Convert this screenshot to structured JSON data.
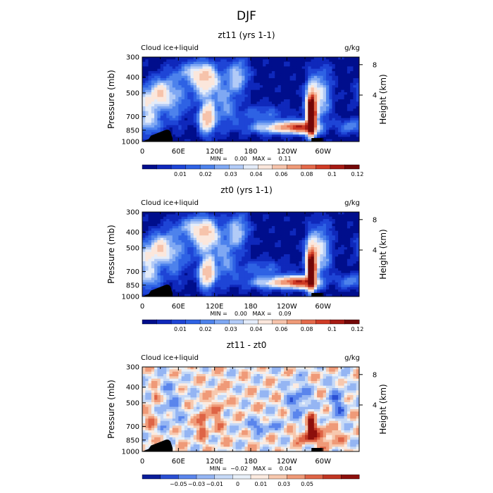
{
  "page_title": "DJF",
  "chart_data": [
    {
      "type": "heatmap",
      "title": "zt11 (yrs 1-1)",
      "variable": "Cloud ice+liquid",
      "units": "g/kg",
      "ylabel": "Pressure (mb)",
      "ylabel_right": "Height (km)",
      "xticks": [
        "0",
        "60E",
        "120E",
        "180",
        "120W",
        "60W"
      ],
      "yticks": [
        "300",
        "400",
        "500",
        "700",
        "850",
        "1000"
      ],
      "height_ticks": [
        "8",
        "4"
      ],
      "min_max": "MIN =    0.00   MAX =    0.11",
      "colorbar": {
        "labels": [
          "0.01",
          "0.02",
          "0.03",
          "0.04",
          "0.06",
          "0.08",
          "0.1",
          "0.12"
        ]
      },
      "peak_value": 0.11
    },
    {
      "type": "heatmap",
      "title": "zt0 (yrs 1-1)",
      "variable": "Cloud ice+liquid",
      "units": "g/kg",
      "ylabel": "Pressure (mb)",
      "ylabel_right": "Height (km)",
      "xticks": [
        "0",
        "60E",
        "120E",
        "180",
        "120W",
        "60W"
      ],
      "yticks": [
        "300",
        "400",
        "500",
        "700",
        "850",
        "1000"
      ],
      "height_ticks": [
        "8",
        "4"
      ],
      "min_max": "MIN =    0.00   MAX =    0.09",
      "colorbar": {
        "labels": [
          "0.01",
          "0.02",
          "0.03",
          "0.04",
          "0.06",
          "0.08",
          "0.1",
          "0.12"
        ]
      },
      "peak_value": 0.09
    },
    {
      "type": "heatmap",
      "title": "zt11 - zt0",
      "variable": "Cloud ice+liquid",
      "units": "g/kg",
      "ylabel": "Pressure (mb)",
      "ylabel_right": "Height (km)",
      "xticks": [
        "0",
        "60E",
        "120E",
        "180",
        "120W",
        "60W"
      ],
      "yticks": [
        "300",
        "400",
        "500",
        "700",
        "850",
        "1000"
      ],
      "height_ticks": [
        "8",
        "4"
      ],
      "min_max": "MIN =  −0.02   MAX =    0.04",
      "colorbar": {
        "labels": [
          "−0.05",
          "−0.03",
          "−0.01",
          "0",
          "0.01",
          "0.03",
          "0.05"
        ]
      },
      "peak_value": 0.04
    }
  ],
  "palettes": {
    "sequential": [
      "#000e8c",
      "#0f28bb",
      "#1e45d6",
      "#2e62e4",
      "#4d82ec",
      "#7fa8f3",
      "#b2cbf7",
      "#e4ecf9",
      "#fbe7dc",
      "#f6c3ab",
      "#ef9a78",
      "#e4694a",
      "#cf3b25",
      "#a61a13",
      "#730707"
    ],
    "diverging": [
      "#0a1d9a",
      "#2a4fd3",
      "#5a85ec",
      "#95b5f3",
      "#c6d9f7",
      "#e8f0f9",
      "#fcebe0",
      "#f7c8ae",
      "#ef9a78",
      "#de6446",
      "#c03522",
      "#8c0f0c"
    ]
  }
}
